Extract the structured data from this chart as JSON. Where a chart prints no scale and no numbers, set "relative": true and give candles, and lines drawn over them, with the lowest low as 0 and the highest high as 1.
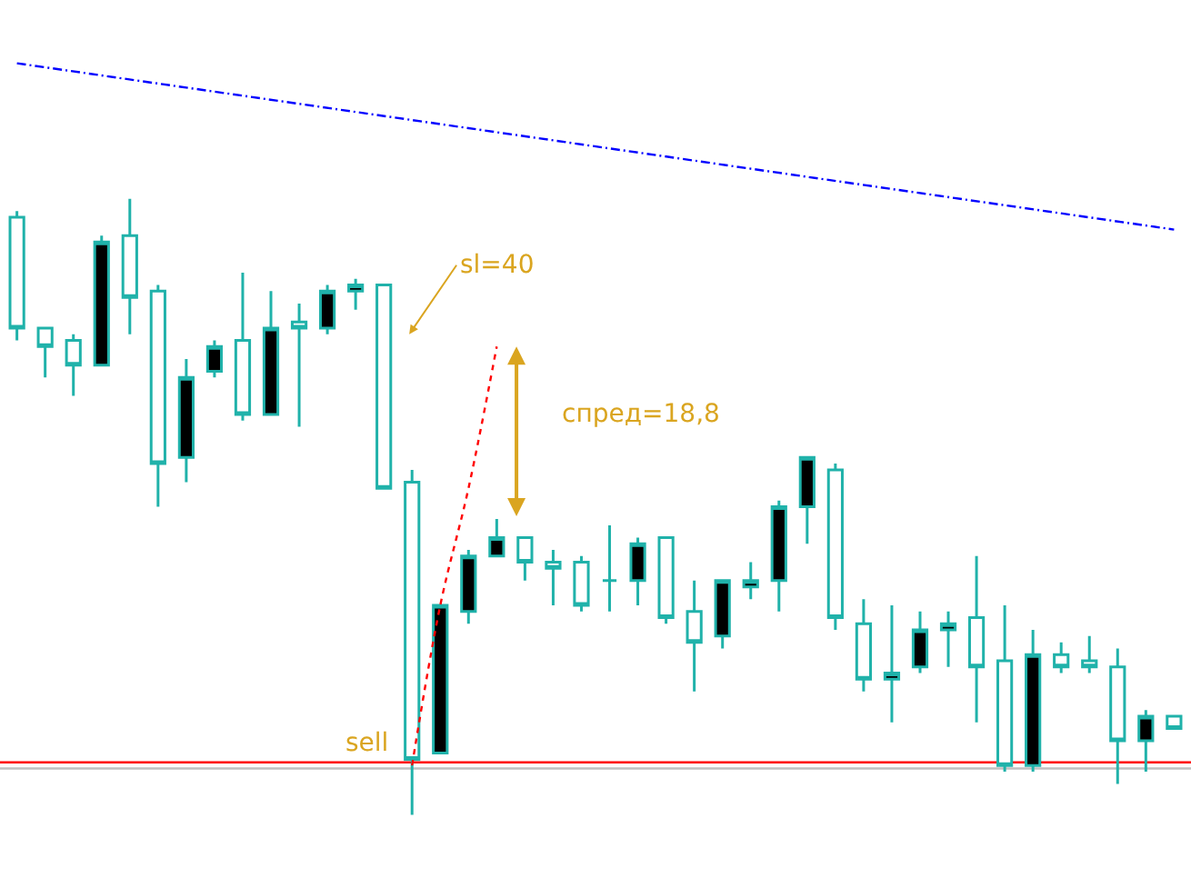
{
  "chart_data": {
    "type": "candlestick",
    "relative": true,
    "categories": [
      null,
      null,
      null,
      null,
      null,
      null,
      null,
      null,
      null,
      null,
      null,
      null,
      null,
      null,
      null,
      null,
      null,
      null,
      null,
      null,
      null,
      null,
      null,
      null,
      null,
      null,
      null,
      null,
      null,
      null,
      null,
      null,
      null,
      null,
      null,
      null,
      null,
      null,
      null,
      null,
      null,
      null
    ],
    "series": [
      {
        "color": "#20b2aa",
        "ohlc": [
          [
            0.97,
            0.98,
            0.77,
            0.79
          ],
          [
            0.79,
            0.79,
            0.71,
            0.76
          ],
          [
            0.77,
            0.78,
            0.68,
            0.73
          ],
          [
            0.73,
            0.94,
            0.73,
            0.93
          ],
          [
            0.94,
            1.0,
            0.78,
            0.84
          ],
          [
            0.85,
            0.86,
            0.5,
            0.57
          ],
          [
            0.58,
            0.74,
            0.54,
            0.71
          ],
          [
            0.72,
            0.77,
            0.71,
            0.76
          ],
          [
            0.77,
            0.88,
            0.64,
            0.65
          ],
          [
            0.65,
            0.85,
            0.65,
            0.79
          ],
          [
            0.8,
            0.83,
            0.63,
            0.79
          ],
          [
            0.79,
            0.86,
            0.78,
            0.85
          ],
          [
            0.85,
            0.87,
            0.82,
            0.86
          ],
          [
            0.86,
            0.86,
            0.53,
            0.53
          ],
          [
            0.54,
            0.56,
            0,
            0.09
          ],
          [
            0.1,
            0.34,
            0.1,
            0.34
          ],
          [
            0.33,
            0.43,
            0.31,
            0.42
          ],
          [
            0.42,
            0.48,
            0.42,
            0.45
          ],
          [
            0.45,
            0.45,
            0.38,
            0.41
          ],
          [
            0.41,
            0.43,
            0.34,
            0.4
          ],
          [
            0.41,
            0.42,
            0.33,
            0.34
          ],
          [
            0.38,
            0.47,
            0.33,
            0.38
          ],
          [
            0.38,
            0.45,
            0.34,
            0.44
          ],
          [
            0.45,
            0.45,
            0.31,
            0.32
          ],
          [
            0.33,
            0.38,
            0.2,
            0.28
          ],
          [
            0.29,
            0.38,
            0.27,
            0.38
          ],
          [
            0.37,
            0.41,
            0.35,
            0.38
          ],
          [
            0.38,
            0.51,
            0.33,
            0.5
          ],
          [
            0.5,
            0.58,
            0.44,
            0.58
          ],
          [
            0.56,
            0.57,
            0.3,
            0.32
          ],
          [
            0.31,
            0.35,
            0.2,
            0.22
          ],
          [
            0.22,
            0.34,
            0.15,
            0.23
          ],
          [
            0.24,
            0.33,
            0.23,
            0.3
          ],
          [
            0.3,
            0.33,
            0.24,
            0.31
          ],
          [
            0.32,
            0.42,
            0.15,
            0.24
          ],
          [
            0.25,
            0.34,
            0.07,
            0.08
          ],
          [
            0.08,
            0.3,
            0.07,
            0.26
          ],
          [
            0.26,
            0.28,
            0.23,
            0.24
          ],
          [
            0.25,
            0.29,
            0.23,
            0.24
          ],
          [
            0.24,
            0.27,
            0.05,
            0.12
          ],
          [
            0.12,
            0.17,
            0.07,
            0.16
          ],
          [
            0.16,
            0.16,
            0.14,
            0.14
          ]
        ],
        "colors": [
          "#ffffff",
          "#ffffff",
          "#ffffff",
          "#000000",
          "#ffffff",
          "#ffffff",
          "#000000",
          "#000000",
          "#ffffff",
          "#000000",
          "#ffffff",
          "#000000",
          "#000000",
          "#ffffff",
          "#ffffff",
          "#000000",
          "#000000",
          "#000000",
          "#ffffff",
          "#ffffff",
          "#ffffff",
          "#20b2aa",
          "#000000",
          "#ffffff",
          "#ffffff",
          "#000000",
          "#000000",
          "#000000",
          "#000000",
          "#ffffff",
          "#ffffff",
          "#000000",
          "#000000",
          "#000000",
          "#ffffff",
          "#ffffff",
          "#000000",
          "#ffffff",
          "#ffffff",
          "#ffffff",
          "#000000",
          "#ffffff"
        ]
      },
      {
        "type": "line",
        "color": "#0000ff",
        "line_style": "dashed",
        "values": [
          1.22,
          null,
          null,
          null,
          null,
          null,
          null,
          null,
          null,
          null,
          null,
          null,
          null,
          null,
          null,
          null,
          null,
          null,
          null,
          null,
          null,
          null,
          null,
          null,
          null,
          null,
          null,
          null,
          null,
          null,
          null,
          null,
          null,
          null,
          null,
          null,
          null,
          null,
          null,
          null,
          null,
          0.95
        ]
      },
      {
        "type": "line",
        "color": "#ff0000",
        "line_style": "dotted",
        "values": [
          null,
          null,
          null,
          null,
          null,
          null,
          null,
          null,
          null,
          null,
          null,
          null,
          null,
          null,
          0.08,
          0.34,
          0.53,
          0.76,
          null,
          null,
          null,
          null,
          null,
          null,
          null,
          null,
          null,
          null,
          null,
          null,
          null,
          null,
          null,
          null,
          null,
          null,
          null,
          null,
          null,
          null,
          null,
          null
        ]
      }
    ],
    "ref_lines": [
      {
        "axis": "y",
        "value": 0.085,
        "color": "#ff0000"
      },
      {
        "axis": "y",
        "value": 0.075,
        "color": "#c0c0c0"
      }
    ],
    "annotations": [
      "sl=40",
      "спред=18,8",
      "sell"
    ]
  }
}
